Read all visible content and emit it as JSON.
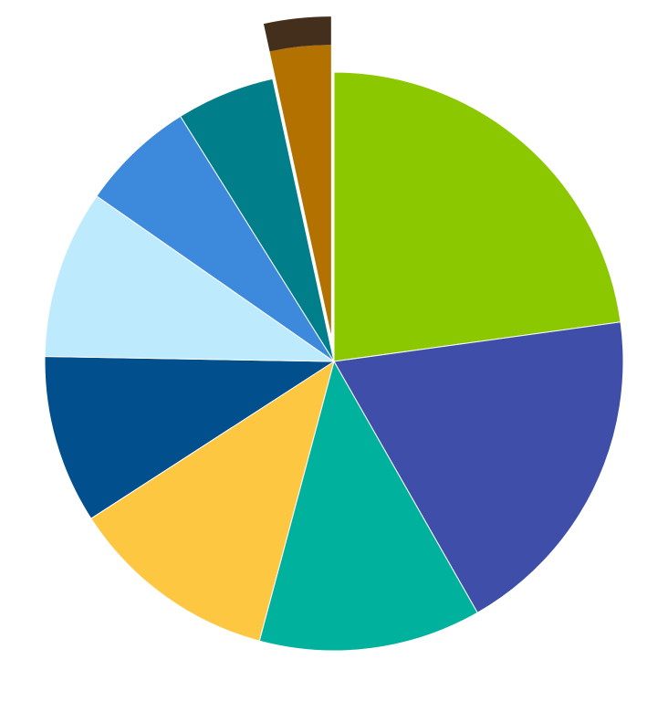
{
  "chart_data": {
    "type": "pie",
    "title": "",
    "start_angle_deg": 0,
    "direction": "clockwise",
    "legend": "none",
    "data_labels": false,
    "slices": [
      {
        "value": 22.8,
        "color": "#8cc800",
        "exploded": false
      },
      {
        "value": 18.9,
        "color": "#3e4ea9",
        "exploded": false
      },
      {
        "value": 12.4,
        "color": "#00b19e",
        "exploded": false
      },
      {
        "value": 11.7,
        "color": "#fdc742",
        "exploded": false
      },
      {
        "value": 9.4,
        "color": "#024f8d",
        "exploded": false
      },
      {
        "value": 9.4,
        "color": "#bdebfd",
        "exploded": false
      },
      {
        "value": 6.4,
        "color": "#3d89dc",
        "exploded": false
      },
      {
        "value": 5.5,
        "color": "#007f8a",
        "exploded": false
      },
      {
        "value": 3.4,
        "color": "#b37100",
        "exploded": true,
        "edge_color": "#442f1c"
      }
    ]
  }
}
